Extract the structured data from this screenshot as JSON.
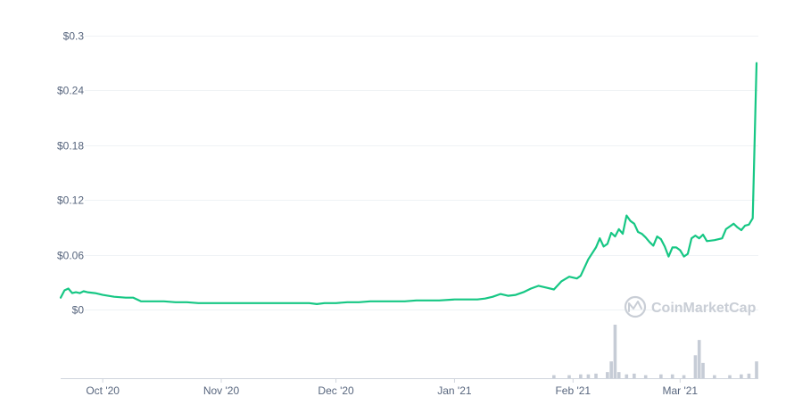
{
  "chart_data": {
    "type": "line",
    "title": "",
    "xlabel": "",
    "ylabel": "",
    "ylim": [
      0,
      0.3
    ],
    "y_ticks": [
      "$0",
      "$0.06",
      "$0.12",
      "$0.18",
      "$0.24",
      "$0.3"
    ],
    "y_tick_values": [
      0,
      0.06,
      0.12,
      0.18,
      0.24,
      0.3
    ],
    "x_ticks": [
      "Oct '20",
      "Nov '20",
      "Dec '20",
      "Jan '21",
      "Feb '21",
      "Mar '21"
    ],
    "x_tick_dates": [
      "2020-10-01",
      "2020-11-01",
      "2020-12-01",
      "2021-01-01",
      "2021-02-01",
      "2021-03-01"
    ],
    "x_range": [
      "2020-09-20",
      "2021-03-21"
    ],
    "grid": true,
    "line_color": "#16c784",
    "volume_color": "#c6ccd6",
    "watermark": "CoinMarketCap",
    "series": [
      {
        "values": [
          [
            "2020-09-20",
            0.013
          ],
          [
            "2020-09-21",
            0.021
          ],
          [
            "2020-09-22",
            0.023
          ],
          [
            "2020-09-23",
            0.018
          ],
          [
            "2020-09-24",
            0.019
          ],
          [
            "2020-09-25",
            0.018
          ],
          [
            "2020-09-26",
            0.02
          ],
          [
            "2020-09-27",
            0.019
          ],
          [
            "2020-09-29",
            0.018
          ],
          [
            "2020-10-01",
            0.016
          ],
          [
            "2020-10-04",
            0.014
          ],
          [
            "2020-10-07",
            0.013
          ],
          [
            "2020-10-09",
            0.013
          ],
          [
            "2020-10-11",
            0.009
          ],
          [
            "2020-10-14",
            0.009
          ],
          [
            "2020-10-17",
            0.009
          ],
          [
            "2020-10-20",
            0.008
          ],
          [
            "2020-10-23",
            0.008
          ],
          [
            "2020-10-26",
            0.007
          ],
          [
            "2020-10-29",
            0.007
          ],
          [
            "2020-11-01",
            0.007
          ],
          [
            "2020-11-04",
            0.007
          ],
          [
            "2020-11-08",
            0.007
          ],
          [
            "2020-11-12",
            0.007
          ],
          [
            "2020-11-16",
            0.007
          ],
          [
            "2020-11-20",
            0.007
          ],
          [
            "2020-11-24",
            0.007
          ],
          [
            "2020-11-26",
            0.006
          ],
          [
            "2020-11-28",
            0.007
          ],
          [
            "2020-12-01",
            0.007
          ],
          [
            "2020-12-04",
            0.008
          ],
          [
            "2020-12-07",
            0.008
          ],
          [
            "2020-12-10",
            0.009
          ],
          [
            "2020-12-13",
            0.009
          ],
          [
            "2020-12-16",
            0.009
          ],
          [
            "2020-12-19",
            0.009
          ],
          [
            "2020-12-22",
            0.01
          ],
          [
            "2020-12-25",
            0.01
          ],
          [
            "2020-12-28",
            0.01
          ],
          [
            "2021-01-01",
            0.011
          ],
          [
            "2021-01-04",
            0.011
          ],
          [
            "2021-01-07",
            0.011
          ],
          [
            "2021-01-09",
            0.012
          ],
          [
            "2021-01-11",
            0.014
          ],
          [
            "2021-01-13",
            0.017
          ],
          [
            "2021-01-15",
            0.015
          ],
          [
            "2021-01-17",
            0.016
          ],
          [
            "2021-01-19",
            0.019
          ],
          [
            "2021-01-21",
            0.023
          ],
          [
            "2021-01-23",
            0.026
          ],
          [
            "2021-01-25",
            0.024
          ],
          [
            "2021-01-27",
            0.022
          ],
          [
            "2021-01-29",
            0.031
          ],
          [
            "2021-01-31",
            0.036
          ],
          [
            "2021-02-02",
            0.034
          ],
          [
            "2021-02-03",
            0.037
          ],
          [
            "2021-02-05",
            0.055
          ],
          [
            "2021-02-07",
            0.068
          ],
          [
            "2021-02-08",
            0.078
          ],
          [
            "2021-02-09",
            0.069
          ],
          [
            "2021-02-10",
            0.072
          ],
          [
            "2021-02-11",
            0.084
          ],
          [
            "2021-02-12",
            0.08
          ],
          [
            "2021-02-13",
            0.088
          ],
          [
            "2021-02-14",
            0.083
          ],
          [
            "2021-02-15",
            0.103
          ],
          [
            "2021-02-16",
            0.097
          ],
          [
            "2021-02-17",
            0.094
          ],
          [
            "2021-02-18",
            0.085
          ],
          [
            "2021-02-19",
            0.083
          ],
          [
            "2021-02-20",
            0.079
          ],
          [
            "2021-02-21",
            0.074
          ],
          [
            "2021-02-22",
            0.07
          ],
          [
            "2021-02-23",
            0.08
          ],
          [
            "2021-02-24",
            0.077
          ],
          [
            "2021-02-25",
            0.069
          ],
          [
            "2021-02-26",
            0.058
          ],
          [
            "2021-02-27",
            0.068
          ],
          [
            "2021-02-28",
            0.068
          ],
          [
            "2021-03-01",
            0.065
          ],
          [
            "2021-03-02",
            0.058
          ],
          [
            "2021-03-03",
            0.061
          ],
          [
            "2021-03-04",
            0.078
          ],
          [
            "2021-03-05",
            0.081
          ],
          [
            "2021-03-06",
            0.078
          ],
          [
            "2021-03-07",
            0.082
          ],
          [
            "2021-03-08",
            0.075
          ],
          [
            "2021-03-10",
            0.076
          ],
          [
            "2021-03-12",
            0.078
          ],
          [
            "2021-03-13",
            0.088
          ],
          [
            "2021-03-14",
            0.091
          ],
          [
            "2021-03-15",
            0.094
          ],
          [
            "2021-03-16",
            0.09
          ],
          [
            "2021-03-17",
            0.087
          ],
          [
            "2021-03-18",
            0.092
          ],
          [
            "2021-03-19",
            0.093
          ],
          [
            "2021-03-20",
            0.1
          ],
          [
            "2021-03-21",
            0.27
          ]
        ]
      }
    ],
    "volume": {
      "description_values_relative": true,
      "values": [
        [
          "2021-01-27",
          0.04
        ],
        [
          "2021-01-31",
          0.04
        ],
        [
          "2021-02-03",
          0.05
        ],
        [
          "2021-02-05",
          0.05
        ],
        [
          "2021-02-07",
          0.06
        ],
        [
          "2021-02-10",
          0.08
        ],
        [
          "2021-02-11",
          0.22
        ],
        [
          "2021-02-12",
          0.7
        ],
        [
          "2021-02-13",
          0.08
        ],
        [
          "2021-02-15",
          0.05
        ],
        [
          "2021-02-17",
          0.06
        ],
        [
          "2021-02-20",
          0.04
        ],
        [
          "2021-02-24",
          0.05
        ],
        [
          "2021-02-27",
          0.05
        ],
        [
          "2021-03-02",
          0.04
        ],
        [
          "2021-03-05",
          0.3
        ],
        [
          "2021-03-06",
          0.5
        ],
        [
          "2021-03-07",
          0.2
        ],
        [
          "2021-03-10",
          0.04
        ],
        [
          "2021-03-14",
          0.04
        ],
        [
          "2021-03-17",
          0.05
        ],
        [
          "2021-03-19",
          0.06
        ],
        [
          "2021-03-21",
          0.22
        ]
      ]
    }
  }
}
